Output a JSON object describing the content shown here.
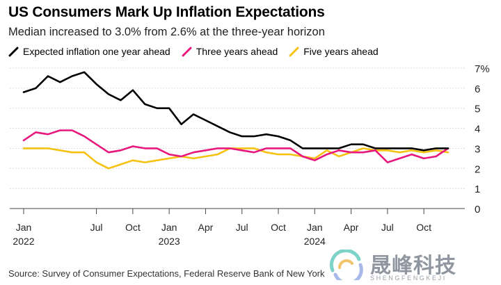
{
  "title": "US Consumers Mark Up Inflation Expectations",
  "subtitle": "Median increased to 3.0% from 2.6% at the three-year horizon",
  "source": "Source: Survey of Consumer Expectations, Federal Reserve Bank of New York",
  "watermark": {
    "cn": "晟峰科技",
    "en": "SHENGFENGKEJI"
  },
  "colors": {
    "one_year": "#000000",
    "three_year": "#e8177d",
    "five_year": "#f5c211",
    "grid": "#cccccc",
    "axis": "#444444"
  },
  "chart_data": {
    "type": "line",
    "title": "US Consumers Mark Up Inflation Expectations",
    "xlabel": "",
    "ylabel": "",
    "ylim": [
      0,
      7
    ],
    "y_ticks": [
      0,
      1,
      2,
      3,
      4,
      5,
      6,
      7
    ],
    "y_tick_labels": [
      "0",
      "1",
      "2",
      "3",
      "4",
      "5",
      "6",
      "7%"
    ],
    "x_ticks": [
      {
        "month_index": 0,
        "label": "Jan",
        "year": "2022"
      },
      {
        "month_index": 6,
        "label": "Jul",
        "year": ""
      },
      {
        "month_index": 9,
        "label": "Oct",
        "year": ""
      },
      {
        "month_index": 12,
        "label": "Jan",
        "year": "2023"
      },
      {
        "month_index": 15,
        "label": "Apr",
        "year": ""
      },
      {
        "month_index": 18,
        "label": "Jul",
        "year": ""
      },
      {
        "month_index": 21,
        "label": "Oct",
        "year": ""
      },
      {
        "month_index": 24,
        "label": "Jan",
        "year": "2024"
      },
      {
        "month_index": 27,
        "label": "Apr",
        "year": ""
      },
      {
        "month_index": 30,
        "label": "Jul",
        "year": ""
      },
      {
        "month_index": 33,
        "label": "Oct",
        "year": ""
      }
    ],
    "x_range": [
      0,
      36
    ],
    "x_description": "months since Jan 2022",
    "series": [
      {
        "name": "Expected inflation one year ahead",
        "key": "one_year",
        "values": [
          5.8,
          6.0,
          6.6,
          6.3,
          6.6,
          6.8,
          6.2,
          5.7,
          5.4,
          5.9,
          5.2,
          5.0,
          5.0,
          4.2,
          4.7,
          4.4,
          4.1,
          3.8,
          3.6,
          3.6,
          3.7,
          3.6,
          3.4,
          3.0,
          3.0,
          3.0,
          3.0,
          3.2,
          3.2,
          3.0,
          3.0,
          3.0,
          3.0,
          2.9,
          3.0,
          3.0
        ]
      },
      {
        "name": "Three years ahead",
        "key": "three_year",
        "values": [
          3.4,
          3.8,
          3.7,
          3.9,
          3.9,
          3.6,
          3.2,
          2.8,
          2.9,
          3.1,
          3.0,
          3.0,
          2.7,
          2.6,
          2.8,
          2.9,
          3.0,
          3.0,
          2.9,
          2.8,
          3.0,
          3.0,
          3.0,
          2.6,
          2.4,
          2.7,
          2.9,
          2.8,
          2.8,
          2.9,
          2.3,
          2.5,
          2.7,
          2.5,
          2.6,
          3.0
        ]
      },
      {
        "name": "Five years ahead",
        "key": "five_year",
        "values": [
          3.0,
          3.0,
          3.0,
          2.9,
          2.8,
          2.8,
          2.3,
          2.0,
          2.2,
          2.4,
          2.3,
          2.4,
          2.5,
          2.6,
          2.5,
          2.6,
          2.7,
          3.0,
          3.0,
          3.0,
          2.8,
          2.7,
          2.7,
          2.6,
          2.5,
          2.9,
          2.6,
          2.8,
          3.0,
          2.9,
          2.9,
          2.8,
          2.9,
          2.8,
          2.9,
          2.8
        ]
      }
    ]
  }
}
